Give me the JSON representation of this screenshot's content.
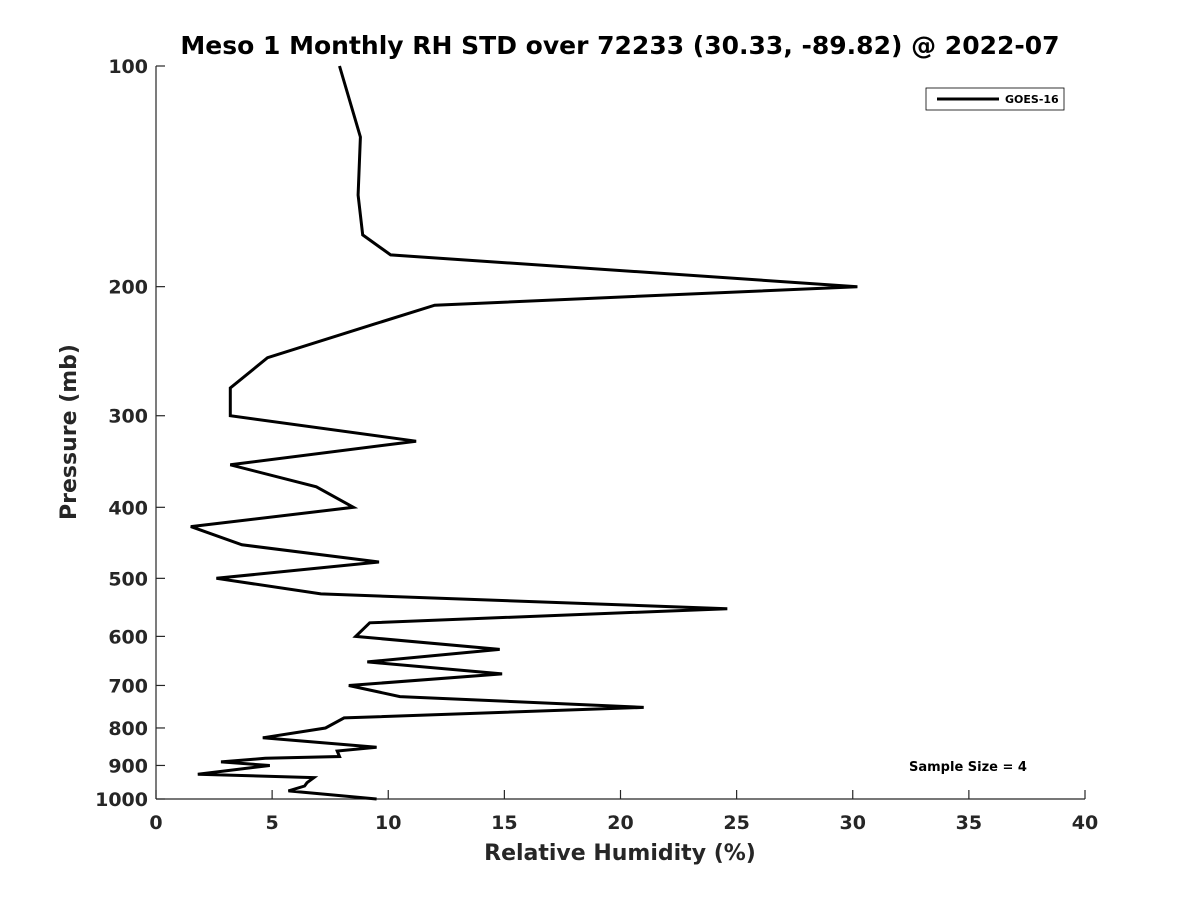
{
  "chart_data": {
    "type": "line",
    "title": "Meso 1 Monthly RH STD over 72233 (30.33, -89.82) @ 2022-07",
    "xlabel": "Relative Humidity (%)",
    "ylabel": "Pressure (mb)",
    "xlim": [
      0,
      40
    ],
    "ylim": [
      100,
      1000
    ],
    "y_scale": "log",
    "y_reversed": true,
    "x_ticks": [
      "0",
      "5",
      "10",
      "15",
      "20",
      "25",
      "30",
      "35",
      "40"
    ],
    "y_ticks": [
      "100",
      "200",
      "300",
      "400",
      "500",
      "600",
      "700",
      "800",
      "900",
      "1000"
    ],
    "grid": false,
    "legend_position": "top-right",
    "series": [
      {
        "name": "GOES-16",
        "color": "#000000",
        "points": [
          [
            7.9,
            100
          ],
          [
            8.8,
            125
          ],
          [
            8.7,
            150
          ],
          [
            8.9,
            170
          ],
          [
            10.1,
            181
          ],
          [
            30.2,
            200
          ],
          [
            12.0,
            212
          ],
          [
            9.4,
            225
          ],
          [
            4.8,
            250
          ],
          [
            3.2,
            275
          ],
          [
            3.2,
            300
          ],
          [
            11.2,
            325
          ],
          [
            3.2,
            350
          ],
          [
            6.9,
            375
          ],
          [
            8.5,
            400
          ],
          [
            1.5,
            425
          ],
          [
            3.7,
            450
          ],
          [
            9.6,
            475
          ],
          [
            2.6,
            500
          ],
          [
            7.1,
            525
          ],
          [
            24.6,
            550
          ],
          [
            9.2,
            575
          ],
          [
            8.6,
            600
          ],
          [
            14.8,
            625
          ],
          [
            9.1,
            650
          ],
          [
            14.9,
            675
          ],
          [
            8.3,
            700
          ],
          [
            10.5,
            725
          ],
          [
            21.0,
            750
          ],
          [
            8.1,
            775
          ],
          [
            7.3,
            800
          ],
          [
            4.6,
            825
          ],
          [
            9.5,
            850
          ],
          [
            7.8,
            860
          ],
          [
            7.9,
            875
          ],
          [
            4.7,
            880
          ],
          [
            2.8,
            890
          ],
          [
            4.9,
            900
          ],
          [
            1.8,
            925
          ],
          [
            6.8,
            935
          ],
          [
            6.5,
            950
          ],
          [
            6.4,
            960
          ],
          [
            5.7,
            975
          ],
          [
            9.5,
            1000
          ]
        ]
      }
    ],
    "annotations": [
      "Sample Size = 4"
    ]
  }
}
